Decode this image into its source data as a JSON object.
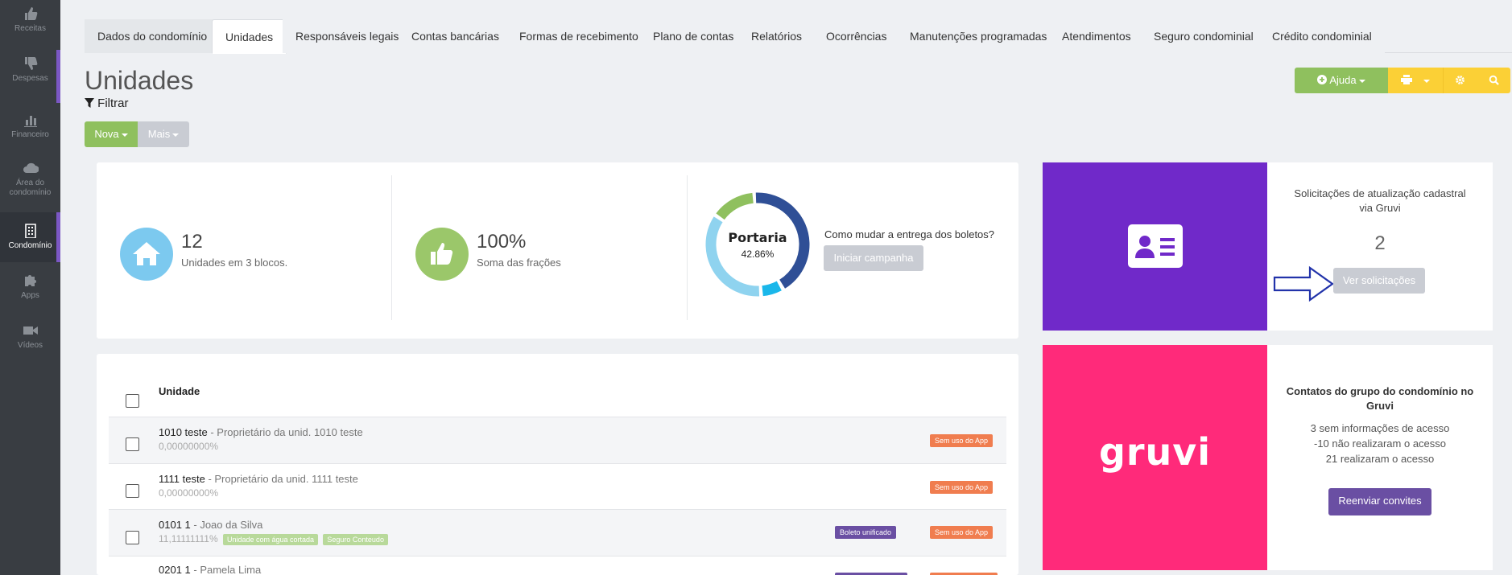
{
  "sidebar": {
    "items": [
      {
        "label": "Receitas",
        "icon": "thumbs-up-icon"
      },
      {
        "label": "Despesas",
        "icon": "thumbs-down-icon"
      },
      {
        "label": "Financeiro",
        "icon": "bar-chart-icon"
      },
      {
        "label_line1": "Área do",
        "label_line2": "condomínio",
        "icon": "cloud-icon"
      },
      {
        "label": "Condomínio",
        "icon": "building-icon",
        "active": true
      },
      {
        "label": "Apps",
        "icon": "puzzle-icon"
      },
      {
        "label": "Vídeos",
        "icon": "video-camera-icon"
      }
    ]
  },
  "tabs": [
    "Dados do condomínio",
    "Unidades",
    "Responsáveis legais",
    "Contas bancárias",
    "Formas de recebimento",
    "Plano de contas",
    "Relatórios",
    "Ocorrências",
    "Manutenções programadas",
    "Atendimentos",
    "Seguro condominial",
    "Crédito condominial"
  ],
  "active_tab": "Unidades",
  "header": {
    "title": "Unidades",
    "filter_label": "Filtrar",
    "nova_label": "Nova",
    "mais_label": "Mais",
    "ajuda_label": "Ajuda"
  },
  "stats": {
    "units_count": "12",
    "units_label": "Unidades em 3 blocos.",
    "fraction_total": "100%",
    "fraction_label": "Soma das frações",
    "donut_title": "Portaria",
    "donut_pct": "42.86%",
    "campaign_question": "Como mudar a entrega dos boletos?",
    "campaign_button": "Iniciar campanha"
  },
  "donut": {
    "segments": [
      {
        "color": "#2f4f96",
        "fraction": 0.4286
      },
      {
        "color": "#1ab7ea",
        "fraction": 0.0714
      },
      {
        "color": "#8fd3ef",
        "fraction": 0.3571
      },
      {
        "color": "#8fc05e",
        "fraction": 0.1429
      }
    ]
  },
  "table": {
    "header": "Unidade",
    "rows": [
      {
        "unit": "1010 teste",
        "owner": " - Proprietário da unid. 1010 teste",
        "fraction": "0,00000000%",
        "tags": [],
        "badges": [
          "Sem uso do App"
        ]
      },
      {
        "unit": "1111 teste",
        "owner": " - Proprietário da unid. 1111 teste",
        "fraction": "0,00000000%",
        "tags": [],
        "badges": [
          "Sem uso do App"
        ]
      },
      {
        "unit": "0101 1",
        "owner": " - Joao da Silva",
        "fraction": "11,11111111%",
        "tags": [
          "Unidade com água cortada",
          "Seguro Conteudo"
        ],
        "badge_purple": "Boleto unificado",
        "badges": [
          "Sem uso do App"
        ]
      },
      {
        "unit": "0201 1",
        "owner": " - Pamela Lima",
        "fraction": "",
        "tags": [],
        "badges": []
      }
    ]
  },
  "gruvi_update": {
    "title_line1": "Solicitações de atualização cadastral",
    "title_line2": "via Gruvi",
    "count": "2",
    "button": "Ver solicitações"
  },
  "gruvi_contacts": {
    "title_line1": "Contatos do grupo do condomínio no",
    "title_line2": "Gruvi",
    "line1": "3 sem informações de acesso",
    "line2": "-10 não realizaram o acesso",
    "line3": "21 realizaram o acesso",
    "button": "Reenviar convites",
    "logo": "gruvi"
  },
  "colors": {
    "sidebar_bg": "#393d42",
    "accent_purple": "#7029c9",
    "accent_pink": "#ff2a7a",
    "green": "#8fc05e",
    "yellow": "#fbd036",
    "badge_orange": "#f07d4f",
    "badge_purple": "#6a4fa3"
  }
}
